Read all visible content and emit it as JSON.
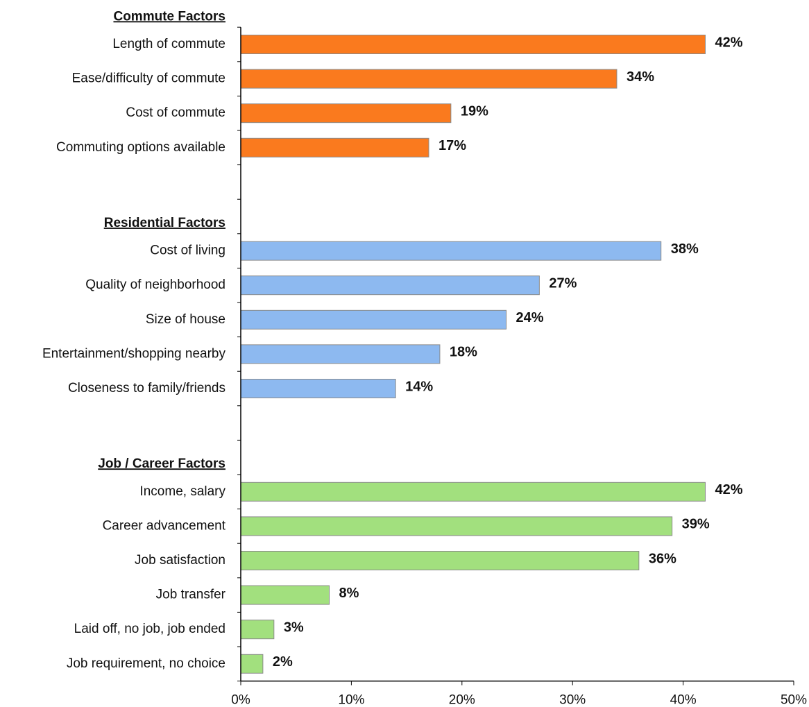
{
  "chart_data": {
    "type": "bar",
    "orientation": "horizontal",
    "groups": [
      {
        "name": "Commute Factors",
        "color": "#fa7a1e",
        "categories": [
          "Length of commute",
          "Ease/difficulty of commute",
          "Cost of commute",
          "Commuting options available"
        ],
        "values": [
          42,
          34,
          19,
          17
        ],
        "value_labels": [
          "42%",
          "34%",
          "19%",
          "17%"
        ]
      },
      {
        "name": "Residential Factors",
        "color": "#8db9f0",
        "categories": [
          "Cost of living",
          "Quality of neighborhood",
          "Size of house",
          "Entertainment/shopping nearby",
          "Closeness to family/friends"
        ],
        "values": [
          38,
          27,
          24,
          18,
          14
        ],
        "value_labels": [
          "38%",
          "27%",
          "24%",
          "18%",
          "14%"
        ]
      },
      {
        "name": "Job / Career Factors",
        "color": "#a2e07e",
        "categories": [
          "Income, salary",
          "Career advancement",
          "Job satisfaction",
          "Job transfer",
          "Laid off, no job, job ended",
          "Job requirement, no choice"
        ],
        "values": [
          42,
          39,
          36,
          8,
          3,
          2
        ],
        "value_labels": [
          "42%",
          "39%",
          "36%",
          "8%",
          "3%",
          "2%"
        ]
      }
    ],
    "xlim": [
      0,
      50
    ],
    "xticks": [
      {
        "value": 0,
        "label": "0%"
      },
      {
        "value": 10,
        "label": "10%"
      },
      {
        "value": 20,
        "label": "20%"
      },
      {
        "value": 30,
        "label": "30%"
      },
      {
        "value": 40,
        "label": "40%"
      },
      {
        "value": 50,
        "label": "50%"
      }
    ]
  }
}
